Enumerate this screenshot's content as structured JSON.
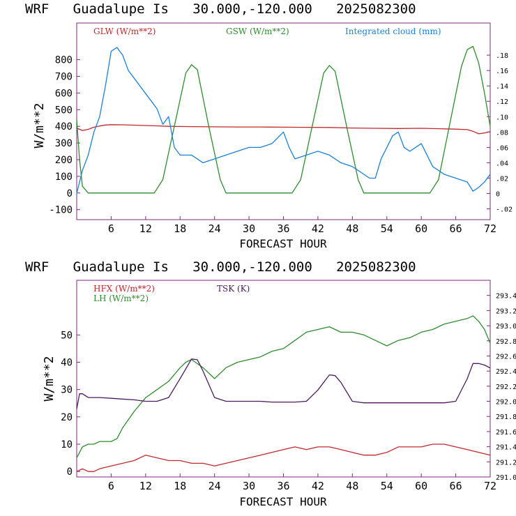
{
  "chart_data": [
    {
      "type": "line",
      "title": "WRF   Guadalupe Is   30.000,-120.000   2025082300",
      "xlabel": "FORECAST HOUR",
      "ylabel": "W/m**2",
      "xlim": [
        0,
        72
      ],
      "ylim": [
        -160,
        1020
      ],
      "y2lim": [
        -0.034,
        0.2218
      ],
      "x_ticks": [
        6,
        12,
        18,
        24,
        30,
        36,
        42,
        48,
        54,
        60,
        66,
        72
      ],
      "y_ticks": [
        -100,
        0,
        100,
        200,
        300,
        400,
        500,
        600,
        700,
        800
      ],
      "y_tick_labels": [
        "-100",
        "0",
        "100",
        "200",
        "300",
        "400",
        "500",
        "600",
        "700",
        "800"
      ],
      "y2_ticks": [
        -0.02,
        0,
        0.02,
        0.04,
        0.06,
        0.08,
        0.1,
        0.12,
        0.14,
        0.16,
        0.18
      ],
      "y2_tick_labels": [
        "-.02",
        "0",
        ".02",
        ".04",
        ".06",
        ".08",
        ".10",
        ".12",
        ".14",
        ".16",
        ".18"
      ],
      "grid": false,
      "legend": "top",
      "series": [
        {
          "name": "GLW (W/m**2)",
          "axis": "left",
          "color": "#c0282d",
          "x": [
            0,
            1,
            2,
            3,
            4,
            5,
            6,
            8,
            10,
            12,
            14,
            16,
            18,
            20,
            24,
            28,
            32,
            36,
            40,
            44,
            48,
            52,
            56,
            60,
            64,
            66,
            68,
            69,
            70,
            71,
            72
          ],
          "y": [
            390,
            375,
            382,
            395,
            402,
            408,
            410,
            409,
            407,
            405,
            403,
            400,
            399,
            398,
            397,
            396,
            396,
            395,
            394,
            393,
            390,
            388,
            387,
            388,
            385,
            383,
            380,
            370,
            355,
            360,
            368
          ]
        },
        {
          "name": "GSW (W/m**2)",
          "axis": "left",
          "color": "#2e8b2e",
          "x": [
            0,
            0.5,
            1,
            2,
            13.5,
            15,
            17,
            19,
            20,
            21,
            23,
            25,
            26,
            37.5,
            39,
            41,
            43,
            44,
            45,
            47,
            49,
            50,
            61.5,
            63,
            65,
            67,
            68,
            69,
            70,
            71,
            72
          ],
          "y": [
            440,
            200,
            40,
            0,
            0,
            80,
            400,
            720,
            770,
            740,
            400,
            80,
            0,
            0,
            80,
            400,
            720,
            765,
            730,
            400,
            80,
            0,
            0,
            80,
            420,
            760,
            860,
            880,
            780,
            600,
            400
          ]
        },
        {
          "name": "Integrated cloud (mm)",
          "axis": "right",
          "color": "#1a80d8",
          "x": [
            0,
            1,
            2,
            3,
            4,
            5,
            6,
            7,
            8,
            9,
            10,
            11,
            12,
            13,
            14,
            15,
            16,
            17,
            18,
            20,
            22,
            24,
            26,
            28,
            30,
            32,
            34,
            36,
            37,
            38,
            40,
            42,
            44,
            46,
            48,
            50,
            51,
            52,
            53,
            54,
            55,
            56,
            57,
            58,
            59,
            60,
            61,
            62,
            63,
            64,
            66,
            68,
            69,
            70,
            71,
            72
          ],
          "y": [
            0.0,
            0.03,
            0.05,
            0.08,
            0.1,
            0.14,
            0.185,
            0.19,
            0.18,
            0.16,
            0.15,
            0.14,
            0.13,
            0.12,
            0.11,
            0.09,
            0.1,
            0.06,
            0.05,
            0.05,
            0.04,
            0.045,
            0.05,
            0.055,
            0.06,
            0.06,
            0.065,
            0.08,
            0.06,
            0.045,
            0.05,
            0.055,
            0.05,
            0.04,
            0.035,
            0.025,
            0.02,
            0.02,
            0.045,
            0.06,
            0.075,
            0.08,
            0.06,
            0.055,
            0.06,
            0.065,
            0.05,
            0.035,
            0.03,
            0.025,
            0.02,
            0.015,
            0.003,
            0.008,
            0.015,
            0.025
          ]
        }
      ]
    },
    {
      "type": "line",
      "title": "WRF   Guadalupe Is   30.000,-120.000   2025082300",
      "xlabel": "FORECAST HOUR",
      "ylabel": "W/m**2",
      "xlim": [
        0,
        72
      ],
      "ylim": [
        -2,
        70
      ],
      "y2lim": [
        291.0,
        293.6
      ],
      "x_ticks": [
        6,
        12,
        18,
        24,
        30,
        36,
        42,
        48,
        54,
        60,
        66,
        72
      ],
      "y_ticks": [
        0,
        10,
        20,
        30,
        40,
        50
      ],
      "y_tick_labels": [
        "0",
        "10",
        "20",
        "30",
        "40",
        "50"
      ],
      "y2_ticks": [
        291.0,
        291.2,
        291.4,
        291.6,
        291.8,
        292.0,
        292.2,
        292.4,
        292.6,
        292.8,
        293.0,
        293.2,
        293.4
      ],
      "y2_tick_labels": [
        "291.0",
        "291.2",
        "291.4",
        "291.6",
        "291.8",
        "292.0",
        "292.2",
        "292.4",
        "292.6",
        "292.8",
        "293.0",
        "293.2",
        "293.4"
      ],
      "grid": false,
      "legend": "top-left",
      "series": [
        {
          "name": "HFX (W/m**2)",
          "axis": "left",
          "color": "#c0282d",
          "x": [
            0,
            1,
            2,
            3,
            4,
            6,
            8,
            10,
            12,
            14,
            16,
            18,
            20,
            22,
            24,
            26,
            28,
            30,
            32,
            34,
            36,
            38,
            40,
            42,
            44,
            46,
            48,
            50,
            52,
            54,
            56,
            58,
            60,
            62,
            64,
            66,
            68,
            70,
            72
          ],
          "y": [
            0,
            1,
            0,
            0,
            1,
            2,
            3,
            4,
            6,
            5,
            4,
            4,
            3,
            3,
            2,
            3,
            4,
            5,
            6,
            7,
            8,
            9,
            8,
            9,
            9,
            8,
            7,
            6,
            6,
            7,
            9,
            9,
            9,
            10,
            10,
            9,
            8,
            7,
            6
          ]
        },
        {
          "name": "LH (W/m**2)",
          "axis": "left",
          "color": "#2e8b2e",
          "x": [
            0,
            1,
            2,
            3,
            4,
            5,
            6,
            7,
            8,
            10,
            12,
            14,
            16,
            18,
            19,
            20,
            22,
            24,
            26,
            28,
            30,
            32,
            34,
            36,
            38,
            40,
            42,
            44,
            46,
            48,
            50,
            52,
            54,
            56,
            58,
            60,
            62,
            64,
            66,
            68,
            69,
            70,
            71,
            72
          ],
          "y": [
            5,
            9,
            10,
            10,
            11,
            11,
            11,
            12,
            16,
            22,
            27,
            30,
            33,
            38,
            40,
            41,
            38,
            34,
            38,
            40,
            41,
            42,
            44,
            45,
            48,
            51,
            52,
            53,
            51,
            51,
            50,
            48,
            46,
            48,
            49,
            51,
            52,
            54,
            55,
            56,
            57,
            55,
            52,
            47
          ]
        },
        {
          "name": "TSK (K)",
          "axis": "right",
          "color": "#4b1a5e",
          "x": [
            0,
            0.5,
            1,
            2,
            4,
            6,
            8,
            10,
            12,
            14,
            16,
            18,
            20,
            21,
            22,
            24,
            26,
            28,
            30,
            32,
            34,
            36,
            38,
            40,
            42,
            44,
            45,
            46,
            48,
            50,
            52,
            54,
            56,
            58,
            60,
            62,
            64,
            66,
            68,
            69,
            70,
            71,
            72
          ],
          "y": [
            291.9,
            292.1,
            292.1,
            292.05,
            292.05,
            292.04,
            292.03,
            292.02,
            292.0,
            292.0,
            292.05,
            292.3,
            292.56,
            292.55,
            292.4,
            292.05,
            292.0,
            292.0,
            292.0,
            292.0,
            291.99,
            291.99,
            291.99,
            292.0,
            292.15,
            292.35,
            292.34,
            292.25,
            292.0,
            291.98,
            291.98,
            291.98,
            291.98,
            291.98,
            291.98,
            291.98,
            291.98,
            292.0,
            292.3,
            292.5,
            292.5,
            292.48,
            292.44
          ]
        }
      ]
    }
  ]
}
